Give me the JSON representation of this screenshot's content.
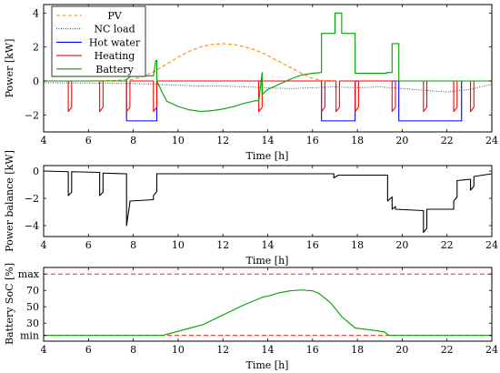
{
  "chart_data": [
    {
      "type": "line",
      "xlabel": "Time [h]",
      "ylabel": "Power [kW]",
      "xlim": [
        4,
        24
      ],
      "ylim": [
        -3,
        4.5
      ],
      "xticks": [
        4,
        6,
        8,
        10,
        12,
        14,
        16,
        18,
        20,
        22,
        24
      ],
      "yticks": [
        -2,
        0,
        2,
        4
      ],
      "legend": "top-left",
      "series": [
        {
          "name": "PV",
          "color": "#ff8c00",
          "dash": "dashed",
          "x": [
            6,
            7,
            8,
            8.5,
            9,
            9.5,
            10,
            10.5,
            11,
            11.5,
            12,
            12.5,
            13,
            13.5,
            14,
            14.5,
            15,
            15.5,
            16,
            16.5,
            17
          ],
          "y": [
            0,
            0.02,
            0.1,
            0.3,
            0.6,
            1.0,
            1.4,
            1.75,
            2.0,
            2.15,
            2.2,
            2.15,
            2.0,
            1.8,
            1.5,
            1.15,
            0.8,
            0.45,
            0.15,
            0.02,
            0
          ]
        },
        {
          "name": "NC load",
          "color": "#444444",
          "dash": "dotted",
          "x": [
            4,
            6,
            8,
            9,
            10,
            11,
            12,
            13,
            14,
            15,
            16,
            17,
            18,
            19,
            20,
            21,
            22,
            23,
            24
          ],
          "y": [
            -0.1,
            -0.12,
            -0.15,
            -0.2,
            -0.25,
            -0.3,
            -0.3,
            -0.35,
            -0.4,
            -0.45,
            -0.4,
            -0.35,
            -0.4,
            -0.35,
            -0.45,
            -0.55,
            -0.65,
            -0.5,
            -0.2
          ]
        },
        {
          "name": "Hot water",
          "color": "#0000ff",
          "dash": "solid",
          "x": [
            7.7,
            7.7,
            9.05,
            9.05,
            16.4,
            16.4,
            17.9,
            17.9,
            19.85,
            19.85,
            22.65,
            22.65
          ],
          "y": [
            0,
            -2.35,
            -2.35,
            0,
            0,
            -2.35,
            -2.35,
            0,
            0,
            -2.35,
            -2.35,
            0
          ]
        },
        {
          "name": "Heating",
          "color": "#ff0000",
          "dash": "solid",
          "x": [
            4,
            5.1,
            5.1,
            5.25,
            5.25,
            6.5,
            6.5,
            6.65,
            6.65,
            7.7,
            7.7,
            7.85,
            7.85,
            8.9,
            8.9,
            9.05,
            9.05,
            13.6,
            13.6,
            13.75,
            13.75,
            16.4,
            16.4,
            16.55,
            16.55,
            17.05,
            17.05,
            17.2,
            17.2,
            17.9,
            17.9,
            18.05,
            18.05,
            19.55,
            19.55,
            19.7,
            19.7,
            20.95,
            20.95,
            21.1,
            21.1,
            22.3,
            22.3,
            22.45,
            22.45,
            23.05,
            23.05,
            23.2,
            23.2,
            24
          ],
          "y": [
            0,
            0,
            -1.8,
            -1.55,
            0,
            0,
            -1.8,
            -1.55,
            0,
            0,
            -1.8,
            -1.55,
            0,
            0,
            -1.8,
            -1.55,
            0,
            0,
            -1.8,
            -1.55,
            0,
            0,
            -1.8,
            -1.55,
            0,
            0,
            -1.8,
            -1.55,
            0,
            0,
            -1.8,
            -1.55,
            0,
            0,
            -1.8,
            -1.55,
            0,
            0,
            -1.8,
            -1.55,
            0,
            0,
            -1.8,
            -1.55,
            0,
            0,
            -1.8,
            -1.55,
            0,
            0
          ]
        },
        {
          "name": "Battery",
          "color": "#00a000",
          "dash": "solid",
          "x": [
            4,
            7.7,
            7.7,
            7.9,
            8.9,
            9.0,
            9.05,
            9.05,
            9.3,
            9.5,
            10,
            10.5,
            11,
            11.5,
            12,
            12.5,
            13,
            13.5,
            13.6,
            13.75,
            13.75,
            14,
            14.5,
            15,
            15.5,
            16,
            16.4,
            16.4,
            17.0,
            17.0,
            17.3,
            17.3,
            17.9,
            17.9,
            19.3,
            19.3,
            19.55,
            19.55,
            19.85,
            19.85,
            24
          ],
          "y": [
            0,
            0,
            0.1,
            0.3,
            0.3,
            1.2,
            1.2,
            0,
            -0.7,
            -1.2,
            -1.5,
            -1.7,
            -1.8,
            -1.75,
            -1.65,
            -1.5,
            -1.3,
            -1.15,
            -1.2,
            0.5,
            -0.8,
            -0.5,
            -0.2,
            0.1,
            0.35,
            0.45,
            0.5,
            2.8,
            2.8,
            4.0,
            4.0,
            2.8,
            2.8,
            0.45,
            0.45,
            0.5,
            0.5,
            2.2,
            2.2,
            0,
            0
          ]
        }
      ]
    },
    {
      "type": "line",
      "xlabel": "Time [h]",
      "ylabel": "Power balance [kW]",
      "xlim": [
        4,
        24
      ],
      "ylim": [
        -4.8,
        0.4
      ],
      "xticks": [
        4,
        6,
        8,
        10,
        12,
        14,
        16,
        18,
        20,
        22,
        24
      ],
      "yticks": [
        -4,
        -2,
        0
      ],
      "series": [
        {
          "color": "#000000",
          "x": [
            4,
            5.1,
            5.1,
            5.25,
            5.25,
            6.5,
            6.5,
            6.65,
            6.65,
            7.7,
            7.7,
            7.85,
            7.85,
            8.9,
            8.9,
            9.05,
            9.05,
            16.95,
            16.95,
            17.05,
            17.15,
            19.35,
            19.35,
            19.55,
            19.55,
            19.7,
            19.7,
            20.95,
            20.95,
            21.1,
            21.1,
            22.3,
            22.3,
            22.45,
            22.45,
            23.05,
            23.05,
            23.2,
            23.2,
            24
          ],
          "y": [
            0,
            -0.05,
            -1.8,
            -1.55,
            -0.05,
            -0.1,
            -1.8,
            -1.55,
            -0.15,
            -0.2,
            -4.0,
            -2.3,
            -2.2,
            -2.1,
            -1.8,
            -1.5,
            -0.2,
            -0.2,
            -0.5,
            -0.4,
            -0.3,
            -0.3,
            -2.2,
            -1.9,
            -2.8,
            -2.6,
            -2.8,
            -2.9,
            -4.5,
            -4.2,
            -2.8,
            -2.8,
            -2.2,
            -1.9,
            -0.7,
            -0.6,
            -1.4,
            -1.1,
            -0.4,
            -0.2
          ]
        }
      ]
    },
    {
      "type": "line",
      "xlabel": "Time [h]",
      "ylabel": "Battery SoC [%]",
      "xlim": [
        4,
        24
      ],
      "ylim": [
        8,
        98
      ],
      "xticks": [
        4,
        6,
        8,
        10,
        12,
        14,
        16,
        18,
        20,
        22,
        24
      ],
      "ytick_values": [
        15,
        30,
        50,
        70,
        90
      ],
      "ytick_labels": [
        "min",
        "30",
        "50",
        "70",
        "max"
      ],
      "limits": [
        15,
        90
      ],
      "limit_color": "#ff0000",
      "series": [
        {
          "color": "#00a000",
          "x": [
            4,
            9.3,
            10,
            10.8,
            11.1,
            12,
            13,
            13.8,
            14,
            14.5,
            15,
            15.5,
            16,
            16.3,
            16.8,
            17.3,
            17.9,
            18.5,
            19.2,
            19.4,
            24
          ],
          "y": [
            15,
            15,
            20,
            26,
            28,
            40,
            53,
            62,
            63,
            67,
            69.5,
            70.5,
            69.5,
            66,
            55,
            38,
            24,
            22,
            19.5,
            15,
            15
          ]
        }
      ]
    }
  ]
}
